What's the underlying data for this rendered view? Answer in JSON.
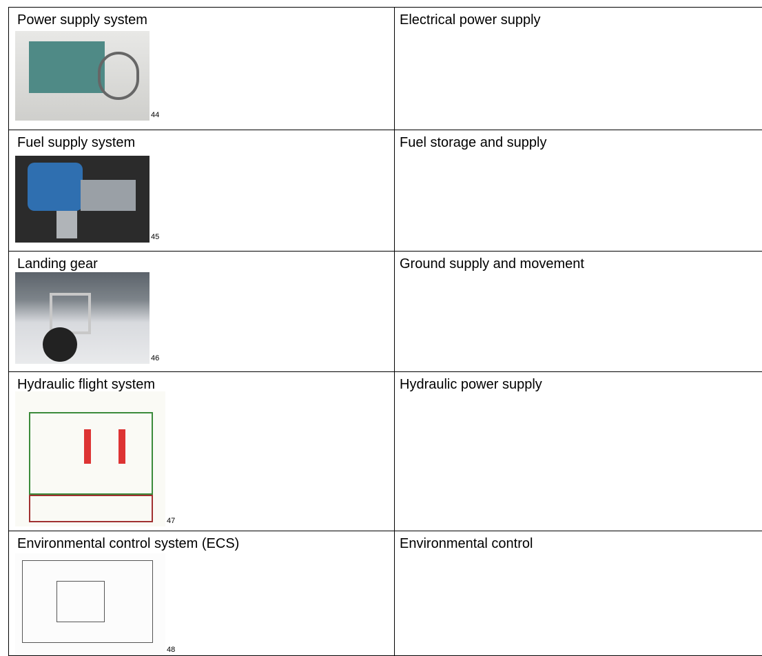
{
  "table": {
    "rows": [
      {
        "system": "Power supply system",
        "function": "Electrical power supply",
        "ref": 44
      },
      {
        "system": "Fuel supply system",
        "function": "Fuel storage and supply",
        "ref": 45
      },
      {
        "system": "Landing gear",
        "function": "Ground supply and movement",
        "ref": 46
      },
      {
        "system": "Hydraulic flight system",
        "function": "Hydraulic power supply",
        "ref": 47
      },
      {
        "system": "Environmental control system (ECS)",
        "function": "Environmental control",
        "ref": 48
      }
    ]
  }
}
